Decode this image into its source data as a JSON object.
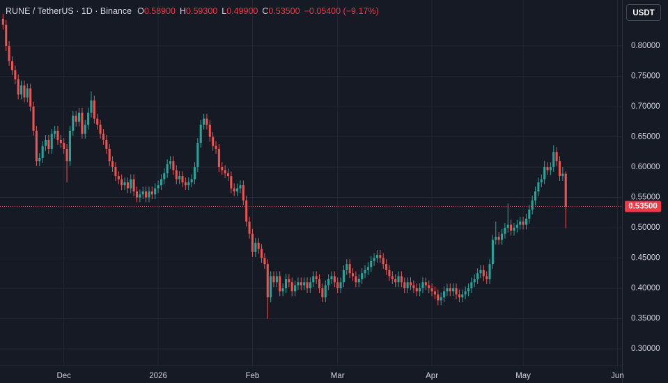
{
  "header": {
    "symbol": "RUNE / TetherUS · 1D · Binance",
    "ohlc": [
      {
        "key": "O",
        "value": "0.58900"
      },
      {
        "key": "H",
        "value": "0.59300"
      },
      {
        "key": "L",
        "value": "0.49900"
      },
      {
        "key": "C",
        "value": "0.53500"
      }
    ],
    "change": "−0.05400 (−9.17%)",
    "currency": "USDT"
  },
  "chart_data": {
    "type": "candlestick",
    "up_color": "#26a69a",
    "down_color": "#ef5350",
    "grid": true,
    "xlim": [
      -1,
      203.5
    ],
    "ylim": [
      0.2724,
      0.8759
    ],
    "xticks": [
      {
        "value": 20,
        "label": "Dec"
      },
      {
        "value": 51,
        "label": "2026"
      },
      {
        "value": 82,
        "label": "Feb"
      },
      {
        "value": 110,
        "label": "Mar"
      },
      {
        "value": 141,
        "label": "Apr"
      },
      {
        "value": 171,
        "label": "May"
      },
      {
        "value": 202,
        "label": "Jun"
      }
    ],
    "yticks": [
      {
        "value": 0.3,
        "label": "0.30000"
      },
      {
        "value": 0.35,
        "label": "0.35000"
      },
      {
        "value": 0.4,
        "label": "0.40000"
      },
      {
        "value": 0.45,
        "label": "0.45000"
      },
      {
        "value": 0.5,
        "label": "0.50000"
      },
      {
        "value": 0.55,
        "label": "0.55000"
      },
      {
        "value": 0.6,
        "label": "0.60000"
      },
      {
        "value": 0.65,
        "label": "0.65000"
      },
      {
        "value": 0.7,
        "label": "0.70000"
      },
      {
        "value": 0.75,
        "label": "0.75000"
      },
      {
        "value": 0.8,
        "label": "0.80000"
      }
    ],
    "last_price": {
      "value": 0.535,
      "label": "0.53500"
    },
    "open": [
      0.845,
      0.835,
      0.8,
      0.775,
      0.76,
      0.745,
      0.72,
      0.735,
      0.715,
      0.73,
      0.7,
      0.66,
      0.61,
      0.615,
      0.635,
      0.645,
      0.63,
      0.655,
      0.66,
      0.645,
      0.64,
      0.63,
      0.61,
      0.66,
      0.685,
      0.675,
      0.69,
      0.655,
      0.67,
      0.69,
      0.71,
      0.68,
      0.67,
      0.655,
      0.645,
      0.63,
      0.61,
      0.6,
      0.585,
      0.58,
      0.57,
      0.575,
      0.565,
      0.58,
      0.56,
      0.55,
      0.555,
      0.56,
      0.55,
      0.56,
      0.555,
      0.565,
      0.57,
      0.58,
      0.59,
      0.605,
      0.61,
      0.595,
      0.58,
      0.585,
      0.575,
      0.57,
      0.575,
      0.58,
      0.6,
      0.64,
      0.67,
      0.68,
      0.67,
      0.65,
      0.635,
      0.63,
      0.6,
      0.595,
      0.59,
      0.585,
      0.565,
      0.56,
      0.565,
      0.57,
      0.545,
      0.51,
      0.49,
      0.46,
      0.475,
      0.465,
      0.45,
      0.44,
      0.385,
      0.42,
      0.41,
      0.42,
      0.395,
      0.4,
      0.415,
      0.41,
      0.395,
      0.405,
      0.41,
      0.405,
      0.41,
      0.4,
      0.41,
      0.42,
      0.415,
      0.4,
      0.385,
      0.405,
      0.415,
      0.42,
      0.41,
      0.4,
      0.41,
      0.43,
      0.44,
      0.425,
      0.42,
      0.41,
      0.415,
      0.425,
      0.43,
      0.435,
      0.445,
      0.45,
      0.455,
      0.45,
      0.44,
      0.43,
      0.42,
      0.415,
      0.41,
      0.42,
      0.41,
      0.4,
      0.41,
      0.405,
      0.4,
      0.395,
      0.4,
      0.41,
      0.405,
      0.4,
      0.395,
      0.39,
      0.38,
      0.385,
      0.395,
      0.4,
      0.395,
      0.4,
      0.39,
      0.385,
      0.39,
      0.395,
      0.4,
      0.41,
      0.415,
      0.425,
      0.43,
      0.42,
      0.415,
      0.44,
      0.48,
      0.485,
      0.48,
      0.49,
      0.5,
      0.505,
      0.495,
      0.5,
      0.505,
      0.51,
      0.505,
      0.515,
      0.53,
      0.545,
      0.56,
      0.575,
      0.58,
      0.6,
      0.595,
      0.6,
      0.625,
      0.61,
      0.585,
      0.589
    ],
    "high": [
      0.853,
      0.843,
      0.808,
      0.783,
      0.768,
      0.753,
      0.743,
      0.743,
      0.738,
      0.738,
      0.708,
      0.668,
      0.623,
      0.643,
      0.653,
      0.653,
      0.663,
      0.668,
      0.668,
      0.653,
      0.648,
      0.638,
      0.668,
      0.693,
      0.693,
      0.698,
      0.698,
      0.678,
      0.698,
      0.725,
      0.718,
      0.688,
      0.678,
      0.663,
      0.653,
      0.638,
      0.618,
      0.608,
      0.593,
      0.588,
      0.583,
      0.583,
      0.588,
      0.588,
      0.568,
      0.563,
      0.568,
      0.568,
      0.568,
      0.568,
      0.573,
      0.578,
      0.588,
      0.598,
      0.613,
      0.618,
      0.618,
      0.603,
      0.593,
      0.593,
      0.583,
      0.583,
      0.588,
      0.608,
      0.648,
      0.678,
      0.688,
      0.688,
      0.678,
      0.658,
      0.643,
      0.638,
      0.608,
      0.603,
      0.598,
      0.593,
      0.573,
      0.573,
      0.578,
      0.578,
      0.553,
      0.518,
      0.498,
      0.483,
      0.483,
      0.473,
      0.458,
      0.448,
      0.428,
      0.428,
      0.428,
      0.428,
      0.408,
      0.423,
      0.423,
      0.418,
      0.413,
      0.418,
      0.418,
      0.418,
      0.418,
      0.418,
      0.428,
      0.428,
      0.423,
      0.408,
      0.413,
      0.423,
      0.428,
      0.428,
      0.418,
      0.418,
      0.438,
      0.448,
      0.448,
      0.433,
      0.428,
      0.423,
      0.433,
      0.438,
      0.443,
      0.453,
      0.458,
      0.463,
      0.463,
      0.458,
      0.448,
      0.438,
      0.428,
      0.423,
      0.428,
      0.428,
      0.418,
      0.418,
      0.418,
      0.413,
      0.408,
      0.408,
      0.418,
      0.418,
      0.413,
      0.408,
      0.403,
      0.398,
      0.393,
      0.403,
      0.408,
      0.408,
      0.408,
      0.408,
      0.398,
      0.398,
      0.403,
      0.408,
      0.418,
      0.423,
      0.433,
      0.438,
      0.438,
      0.428,
      0.448,
      0.488,
      0.51,
      0.493,
      0.498,
      0.508,
      0.54,
      0.513,
      0.508,
      0.513,
      0.518,
      0.518,
      0.523,
      0.538,
      0.553,
      0.568,
      0.583,
      0.588,
      0.61,
      0.608,
      0.608,
      0.636,
      0.633,
      0.618,
      0.6,
      0.593
    ],
    "low": [
      0.827,
      0.792,
      0.767,
      0.752,
      0.737,
      0.712,
      0.712,
      0.707,
      0.707,
      0.692,
      0.652,
      0.602,
      0.602,
      0.607,
      0.627,
      0.622,
      0.622,
      0.647,
      0.637,
      0.632,
      0.622,
      0.575,
      0.602,
      0.652,
      0.667,
      0.667,
      0.647,
      0.647,
      0.662,
      0.682,
      0.672,
      0.662,
      0.647,
      0.637,
      0.622,
      0.602,
      0.592,
      0.577,
      0.572,
      0.562,
      0.562,
      0.557,
      0.557,
      0.552,
      0.542,
      0.542,
      0.547,
      0.542,
      0.542,
      0.547,
      0.547,
      0.557,
      0.562,
      0.572,
      0.582,
      0.597,
      0.587,
      0.572,
      0.572,
      0.567,
      0.562,
      0.562,
      0.567,
      0.572,
      0.592,
      0.632,
      0.662,
      0.662,
      0.642,
      0.627,
      0.622,
      0.592,
      0.587,
      0.582,
      0.577,
      0.557,
      0.552,
      0.552,
      0.557,
      0.537,
      0.502,
      0.482,
      0.452,
      0.452,
      0.457,
      0.442,
      0.432,
      0.35,
      0.377,
      0.402,
      0.402,
      0.387,
      0.387,
      0.392,
      0.402,
      0.387,
      0.387,
      0.397,
      0.397,
      0.397,
      0.392,
      0.392,
      0.402,
      0.407,
      0.392,
      0.377,
      0.377,
      0.397,
      0.407,
      0.402,
      0.392,
      0.392,
      0.402,
      0.422,
      0.417,
      0.412,
      0.402,
      0.402,
      0.407,
      0.417,
      0.422,
      0.427,
      0.437,
      0.442,
      0.442,
      0.432,
      0.422,
      0.412,
      0.407,
      0.402,
      0.402,
      0.402,
      0.392,
      0.392,
      0.397,
      0.392,
      0.387,
      0.387,
      0.392,
      0.397,
      0.392,
      0.387,
      0.382,
      0.372,
      0.372,
      0.377,
      0.387,
      0.387,
      0.387,
      0.382,
      0.377,
      0.377,
      0.382,
      0.387,
      0.392,
      0.402,
      0.407,
      0.417,
      0.412,
      0.407,
      0.407,
      0.432,
      0.472,
      0.472,
      0.472,
      0.482,
      0.492,
      0.487,
      0.487,
      0.492,
      0.497,
      0.497,
      0.497,
      0.507,
      0.522,
      0.537,
      0.552,
      0.567,
      0.572,
      0.587,
      0.587,
      0.592,
      0.602,
      0.577,
      0.577,
      0.499
    ],
    "close": [
      0.835,
      0.8,
      0.775,
      0.76,
      0.745,
      0.72,
      0.735,
      0.715,
      0.73,
      0.7,
      0.66,
      0.61,
      0.615,
      0.635,
      0.645,
      0.63,
      0.655,
      0.66,
      0.645,
      0.64,
      0.63,
      0.61,
      0.66,
      0.685,
      0.675,
      0.69,
      0.655,
      0.67,
      0.69,
      0.71,
      0.68,
      0.67,
      0.655,
      0.645,
      0.63,
      0.61,
      0.6,
      0.585,
      0.58,
      0.57,
      0.575,
      0.565,
      0.58,
      0.56,
      0.55,
      0.555,
      0.56,
      0.55,
      0.56,
      0.555,
      0.565,
      0.57,
      0.58,
      0.59,
      0.605,
      0.61,
      0.595,
      0.58,
      0.585,
      0.575,
      0.57,
      0.575,
      0.58,
      0.6,
      0.64,
      0.67,
      0.68,
      0.67,
      0.65,
      0.635,
      0.63,
      0.6,
      0.595,
      0.59,
      0.585,
      0.565,
      0.56,
      0.565,
      0.57,
      0.545,
      0.51,
      0.49,
      0.46,
      0.475,
      0.465,
      0.45,
      0.44,
      0.385,
      0.42,
      0.41,
      0.42,
      0.395,
      0.4,
      0.415,
      0.41,
      0.395,
      0.405,
      0.41,
      0.405,
      0.41,
      0.4,
      0.41,
      0.42,
      0.415,
      0.4,
      0.385,
      0.405,
      0.415,
      0.42,
      0.41,
      0.4,
      0.41,
      0.43,
      0.44,
      0.425,
      0.42,
      0.41,
      0.415,
      0.425,
      0.43,
      0.435,
      0.445,
      0.45,
      0.455,
      0.45,
      0.44,
      0.43,
      0.42,
      0.415,
      0.41,
      0.42,
      0.41,
      0.4,
      0.41,
      0.405,
      0.4,
      0.395,
      0.4,
      0.41,
      0.405,
      0.4,
      0.395,
      0.39,
      0.38,
      0.385,
      0.395,
      0.4,
      0.395,
      0.4,
      0.39,
      0.385,
      0.39,
      0.395,
      0.4,
      0.41,
      0.415,
      0.425,
      0.43,
      0.42,
      0.415,
      0.44,
      0.48,
      0.485,
      0.48,
      0.49,
      0.5,
      0.505,
      0.495,
      0.5,
      0.505,
      0.51,
      0.505,
      0.515,
      0.53,
      0.545,
      0.56,
      0.575,
      0.58,
      0.6,
      0.595,
      0.6,
      0.625,
      0.61,
      0.585,
      0.589,
      0.535
    ]
  }
}
